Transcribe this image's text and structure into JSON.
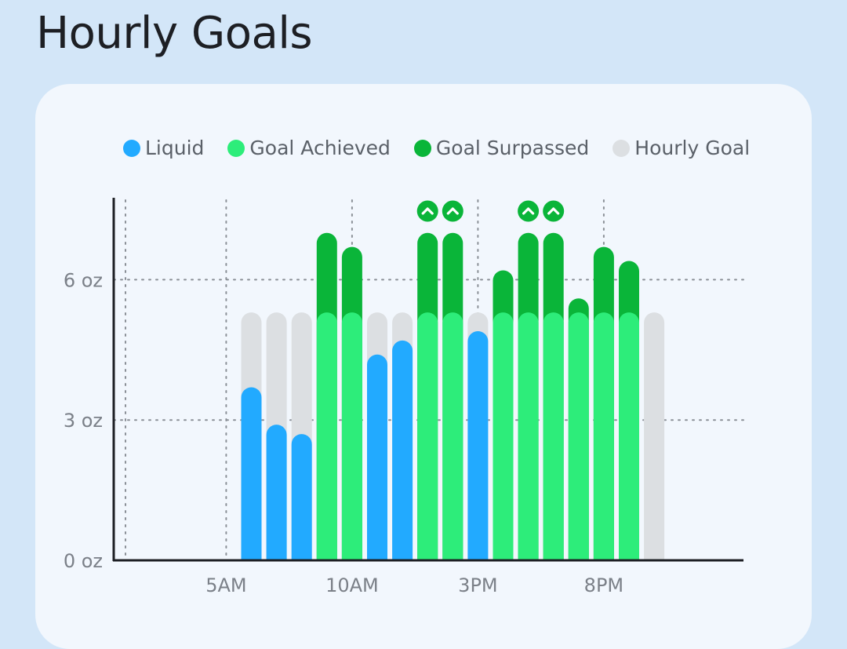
{
  "title": "Hourly Goals",
  "colors": {
    "liquid": "#22aaff",
    "achieved": "#2ded7a",
    "surpassed": "#0ab539",
    "goal": "#dcdfe2",
    "background": "#d3e6f8",
    "card": "#f2f7fd"
  },
  "legend": [
    {
      "label": "Liquid",
      "color": "#22aaff"
    },
    {
      "label": "Goal Achieved",
      "color": "#2ded7a"
    },
    {
      "label": "Goal Surpassed",
      "color": "#0ab539"
    },
    {
      "label": "Hourly Goal",
      "color": "#dcdfe2"
    }
  ],
  "chart_data": {
    "type": "bar",
    "unit": "oz",
    "hourly_goal": 5.3,
    "ylim": [
      0,
      7.5
    ],
    "y_ticks": [
      0,
      3,
      6
    ],
    "y_tick_labels": [
      "0 oz",
      "3 oz",
      "6 oz"
    ],
    "x_tick_labels": [
      "5AM",
      "10AM",
      "3PM",
      "8PM"
    ],
    "x_tick_hours": [
      5,
      10,
      15,
      20
    ],
    "grid": true,
    "legend_position": "top",
    "hours": [
      6,
      7,
      8,
      9,
      10,
      11,
      12,
      13,
      14,
      15,
      16,
      17,
      18,
      19,
      20,
      21,
      22
    ],
    "values": [
      3.7,
      2.9,
      2.7,
      7.0,
      6.7,
      4.4,
      4.7,
      7.0,
      7.0,
      4.9,
      6.2,
      7.0,
      7.0,
      5.6,
      6.7,
      6.4,
      0
    ],
    "marked_hours": [
      13,
      14,
      17,
      18
    ]
  }
}
